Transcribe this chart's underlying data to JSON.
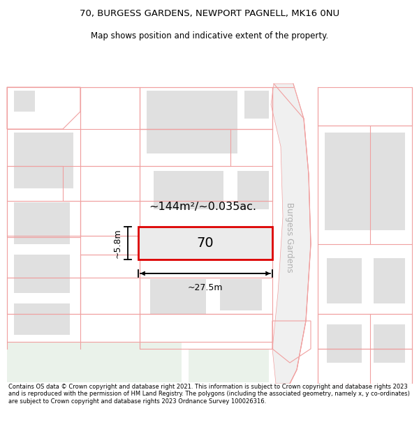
{
  "title_line1": "70, BURGESS GARDENS, NEWPORT PAGNELL, MK16 0NU",
  "title_line2": "Map shows position and indicative extent of the property.",
  "footer_text": "Contains OS data © Crown copyright and database right 2021. This information is subject to Crown copyright and database rights 2023 and is reproduced with the permission of HM Land Registry. The polygons (including the associated geometry, namely x, y co-ordinates) are subject to Crown copyright and database rights 2023 Ordnance Survey 100026316.",
  "bg_color": "#ffffff",
  "map_bg": "#ffffff",
  "building_fill": "#e0e0e0",
  "green_fill": "#eaf2ea",
  "plot_outline_color": "#dd0000",
  "plot_fill": "#ebebeb",
  "other_outline_color": "#f0a0a0",
  "road_label": "Burgess Gardens",
  "area_label": "~144m²/~0.035ac.",
  "width_label": "~27.5m",
  "height_label": "~5.8m",
  "number_label": "70"
}
